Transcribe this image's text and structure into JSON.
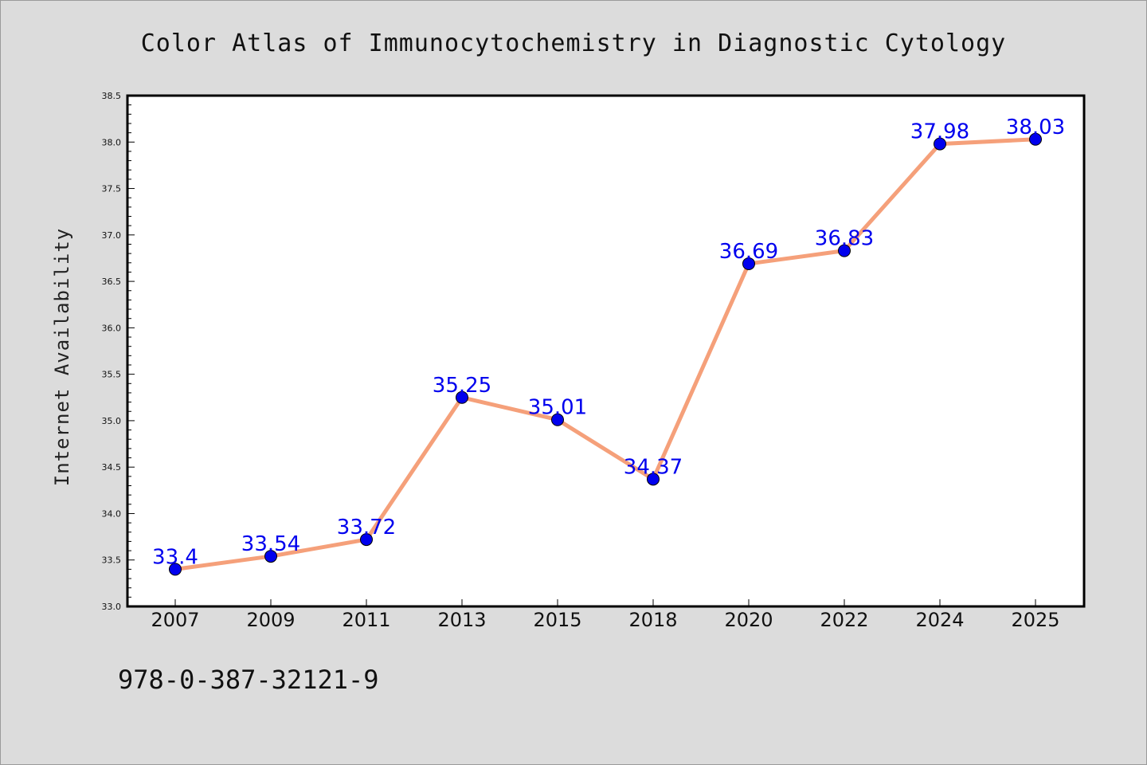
{
  "chart_data": {
    "type": "line",
    "title": "Color Atlas of Immunocytochemistry in Diagnostic Cytology",
    "xlabel": "",
    "ylabel": "Internet Availability",
    "categories": [
      "2007",
      "2009",
      "2011",
      "2013",
      "2015",
      "2018",
      "2020",
      "2022",
      "2024",
      "2025"
    ],
    "series": [
      {
        "values": [
          33.4,
          33.54,
          33.72,
          35.25,
          35.01,
          34.37,
          36.69,
          36.83,
          37.98,
          38.03
        ],
        "labels": [
          "33.4",
          "33.54",
          "33.72",
          "35.25",
          "35.01",
          "34.37",
          "36.69",
          "36.83",
          "37.98",
          "38.03"
        ],
        "line_color": "#f5a07a",
        "marker_color": "#0000ee"
      }
    ],
    "ylim": [
      33.0,
      38.5
    ],
    "yticks": [
      "33.0",
      "33.5",
      "34.0",
      "34.5",
      "35.0",
      "35.5",
      "36.0",
      "36.5",
      "37.0",
      "37.5",
      "38.0",
      "38.5"
    ],
    "grid": false,
    "legend": "none"
  },
  "footer": {
    "isbn": "978-0-387-32121-9"
  },
  "colors": {
    "background": "#dcdcdc",
    "plot_area": "#ffffff",
    "line": "#f5a07a",
    "marker": "#0000ee",
    "data_label": "#0000ee"
  }
}
